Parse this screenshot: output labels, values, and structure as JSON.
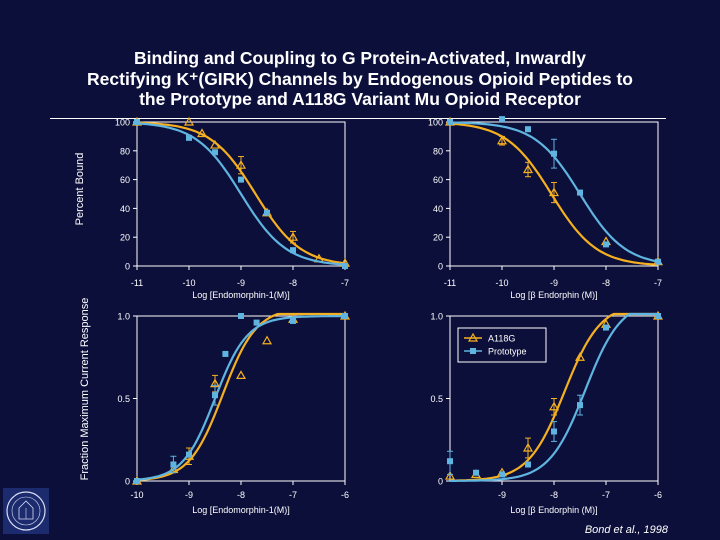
{
  "title_lines": [
    "Binding and Coupling to G Protein-Activated, Inwardly",
    "Rectifying K⁺(GIRK) Channels by Endogenous Opioid Peptides to",
    "the Prototype and A118G Variant Mu Opioid Receptor"
  ],
  "y_labels": {
    "top": "Percent Bound",
    "bottom": "Fraction Maximum Current Response"
  },
  "citation": "Bond et al., 1998",
  "seal": {
    "lines": [
      "THE",
      "ROCKEFELLER",
      "UNIVERSITY"
    ]
  },
  "colors": {
    "background": "#0c0f3a",
    "a118g": "#f4b021",
    "prototype": "#5fb4e0",
    "axis": "#ffffff"
  },
  "chart_data": [
    {
      "type": "line",
      "panel": "top-left",
      "xlabel": "Log [Endomorphin-1(M)]",
      "xlim": [
        -11,
        -7
      ],
      "ylim": [
        0,
        100
      ],
      "xticks": [
        "-11",
        "-10",
        "-9",
        "-8",
        "-7"
      ],
      "yticks": [
        "0",
        "20",
        "40",
        "60",
        "80",
        "100"
      ],
      "series": [
        {
          "name": "A118G",
          "marker": "triangle",
          "points": [
            [
              -11,
              100
            ],
            [
              -10,
              100
            ],
            [
              -9.75,
              92
            ],
            [
              -9.5,
              84
            ],
            [
              -9,
              70
            ],
            [
              -8.5,
              37
            ],
            [
              -8,
              20
            ],
            [
              -7.5,
              5
            ],
            [
              -7,
              2
            ]
          ],
          "errors": [
            [
              -9,
              76,
              64
            ],
            [
              -8,
              24,
              16
            ]
          ],
          "curve": {
            "top": 100,
            "bottom": 0,
            "logec50": -8.72,
            "hill": 1.0
          }
        },
        {
          "name": "Prototype",
          "marker": "square",
          "points": [
            [
              -11,
              100
            ],
            [
              -10,
              89
            ],
            [
              -9.5,
              79
            ],
            [
              -9,
              60
            ],
            [
              -8.5,
              37
            ],
            [
              -8,
              11
            ],
            [
              -7,
              0
            ]
          ],
          "curve": {
            "top": 100,
            "bottom": 0,
            "logec50": -9.0,
            "hill": 1.0
          }
        }
      ]
    },
    {
      "type": "line",
      "panel": "top-right",
      "xlabel": "Log [β Endorphin (M)]",
      "xlim": [
        -11,
        -7
      ],
      "ylim": [
        0,
        100
      ],
      "xticks": [
        "-11",
        "-10",
        "-9",
        "-8",
        "-7"
      ],
      "yticks": [
        "0",
        "20",
        "40",
        "60",
        "80",
        "100"
      ],
      "series": [
        {
          "name": "A118G",
          "marker": "triangle",
          "points": [
            [
              -11,
              100
            ],
            [
              -10,
              87
            ],
            [
              -9.5,
              67
            ],
            [
              -9,
              51
            ],
            [
              -8,
              17
            ],
            [
              -7,
              3
            ]
          ],
          "errors": [
            [
              -10,
              90,
              84
            ],
            [
              -9.5,
              72,
              62
            ],
            [
              -9,
              58,
              44
            ]
          ],
          "curve": {
            "top": 100,
            "bottom": 0,
            "logec50": -9.05,
            "hill": 1.0
          }
        },
        {
          "name": "Prototype",
          "marker": "square",
          "points": [
            [
              -11,
              100
            ],
            [
              -10,
              102
            ],
            [
              -9.5,
              95
            ],
            [
              -9,
              78
            ],
            [
              -8.5,
              51
            ],
            [
              -8,
              15
            ],
            [
              -7,
              3
            ]
          ],
          "errors": [
            [
              -9,
              88,
              68
            ]
          ],
          "curve": {
            "top": 100,
            "bottom": 0,
            "logec50": -8.5,
            "hill": 1.0
          }
        }
      ]
    },
    {
      "type": "line",
      "panel": "bottom-left",
      "xlabel": "Log [Endomorphin-1(M)]",
      "xlim": [
        -10,
        -6
      ],
      "ylim": [
        0,
        1.0
      ],
      "xticks": [
        "-10",
        "-9",
        "-8",
        "-7",
        "-6"
      ],
      "yticks": [
        "0",
        "0.5",
        "1.0"
      ],
      "series": [
        {
          "name": "A118G",
          "marker": "triangle",
          "points": [
            [
              -10,
              0
            ],
            [
              -9.3,
              0.07
            ],
            [
              -9,
              0.15
            ],
            [
              -8.5,
              0.59
            ],
            [
              -8,
              0.64
            ],
            [
              -7.5,
              0.85
            ],
            [
              -7,
              0.98
            ],
            [
              -6,
              1.0
            ]
          ],
          "errors": [
            [
              -9,
              0.2,
              0.1
            ],
            [
              -8.5,
              0.64,
              0.54
            ]
          ],
          "curve": {
            "top": 1.05,
            "bottom": 0,
            "logec50": -8.35,
            "hill": 1.35
          }
        },
        {
          "name": "Prototype",
          "marker": "square",
          "points": [
            [
              -10,
              0
            ],
            [
              -9.3,
              0.1
            ],
            [
              -9,
              0.16
            ],
            [
              -8.5,
              0.52
            ],
            [
              -8.3,
              0.77
            ],
            [
              -8,
              1.0
            ],
            [
              -7.7,
              0.96
            ],
            [
              -7,
              0.97
            ],
            [
              -6,
              1.0
            ]
          ],
          "errors": [
            [
              -9.3,
              0.15,
              0.05
            ],
            [
              -8.5,
              0.58,
              0.46
            ]
          ],
          "curve": {
            "top": 1.0,
            "bottom": 0,
            "logec50": -8.5,
            "hill": 1.4
          }
        }
      ]
    },
    {
      "type": "line",
      "panel": "bottom-right",
      "xlabel": "Log [β Endorphin (M)]",
      "xlim": [
        -10,
        -6
      ],
      "ylim": [
        0,
        1.0
      ],
      "xticks": [
        "-9",
        "-8",
        "-7",
        "-6"
      ],
      "yticks": [
        "0",
        "0.5",
        "1.0"
      ],
      "legend": {
        "position": "top-left",
        "entries": [
          "A118G",
          "Prototype"
        ]
      },
      "series": [
        {
          "name": "A118G",
          "marker": "triangle",
          "points": [
            [
              -10,
              0.03
            ],
            [
              -9.5,
              0.04
            ],
            [
              -9,
              0.05
            ],
            [
              -8.5,
              0.2
            ],
            [
              -8,
              0.45
            ],
            [
              -7.5,
              0.75
            ],
            [
              -7,
              0.95
            ],
            [
              -6,
              1.0
            ]
          ],
          "errors": [
            [
              -8.5,
              0.26,
              0.14
            ],
            [
              -8,
              0.5,
              0.4
            ]
          ],
          "curve": {
            "top": 1.08,
            "bottom": 0,
            "logec50": -7.8,
            "hill": 1.25
          }
        },
        {
          "name": "Prototype",
          "marker": "square",
          "points": [
            [
              -10,
              0.12
            ],
            [
              -9.5,
              0.05
            ],
            [
              -9,
              0.04
            ],
            [
              -8.5,
              0.1
            ],
            [
              -8,
              0.3
            ],
            [
              -7.5,
              0.46
            ],
            [
              -7,
              0.93
            ],
            [
              -6,
              1.0
            ]
          ],
          "errors": [
            [
              -10,
              0.18,
              0.04
            ],
            [
              -8,
              0.36,
              0.24
            ],
            [
              -7.5,
              0.52,
              0.4
            ]
          ],
          "curve": {
            "top": 1.1,
            "bottom": 0,
            "logec50": -7.4,
            "hill": 1.25
          }
        }
      ]
    }
  ]
}
